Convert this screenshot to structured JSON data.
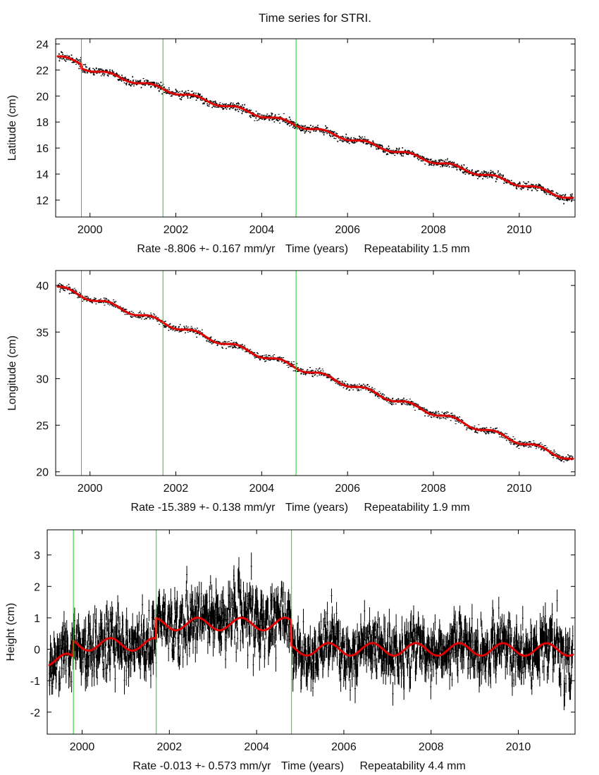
{
  "title": "Time series for STRI.",
  "colors": {
    "data": "#000000",
    "model": "#e00000",
    "breaks": "#22cc22",
    "axes": "#000000"
  },
  "chart_data": [
    {
      "type": "scatter",
      "id": "latitude",
      "ylabel": "Latitude (cm)",
      "xlabel": "Time (years)",
      "rate_text": "Rate -8.806 +- 0.167 mm/yr",
      "repeat_text": "Repeatability 1.5 mm",
      "xlim": [
        1999.2,
        2011.3
      ],
      "ylim": [
        10.7,
        24.4
      ],
      "xticks": [
        2000,
        2002,
        2004,
        2006,
        2008,
        2010
      ],
      "xtick_labels": [
        "2000",
        "2002",
        "2004",
        "2006",
        "2008",
        "2010"
      ],
      "yticks": [
        12,
        14,
        16,
        18,
        20,
        22,
        24
      ],
      "ytick_labels": [
        "12",
        "14",
        "16",
        "18",
        "20",
        "22",
        "24"
      ],
      "breaks": [
        1999.8,
        2001.7,
        2004.8
      ],
      "model": {
        "start_year": 1999.25,
        "start_value": 23.0,
        "rate_cm_per_yr": -0.8806,
        "annual_amp": 0.15,
        "offsets": [
          {
            "at": 1999.8,
            "delta": -0.3
          }
        ]
      },
      "noise_cm": 0.15
    },
    {
      "type": "scatter",
      "id": "longitude",
      "ylabel": "Longitude (cm)",
      "xlabel": "Time (years)",
      "rate_text": "Rate -15.389 +- 0.138 mm/yr",
      "repeat_text": "Repeatability 1.9 mm",
      "xlim": [
        1999.2,
        2011.3
      ],
      "ylim": [
        19.6,
        41.6
      ],
      "xticks": [
        2000,
        2002,
        2004,
        2006,
        2008,
        2010
      ],
      "xtick_labels": [
        "2000",
        "2002",
        "2004",
        "2006",
        "2008",
        "2010"
      ],
      "yticks": [
        20,
        25,
        30,
        35,
        40
      ],
      "ytick_labels": [
        "20",
        "25",
        "30",
        "35",
        "40"
      ],
      "breaks": [
        1999.8,
        2001.7,
        2004.8
      ],
      "model": {
        "start_year": 1999.25,
        "start_value": 39.8,
        "rate_cm_per_yr": -1.5389,
        "annual_amp": 0.25,
        "offsets": []
      },
      "noise_cm": 0.19
    },
    {
      "type": "scatter",
      "id": "height",
      "ylabel": "Height (cm)",
      "xlabel": "Time (years)",
      "rate_text": "Rate -0.013 +- 0.573 mm/yr",
      "repeat_text": "Repeatability 4.4 mm",
      "xlim": [
        1999.2,
        2011.3
      ],
      "ylim": [
        -2.7,
        3.8
      ],
      "xticks": [
        2000,
        2002,
        2004,
        2006,
        2008,
        2010
      ],
      "xtick_labels": [
        "2000",
        "2002",
        "2004",
        "2006",
        "2008",
        "2010"
      ],
      "yticks": [
        -2,
        -1,
        0,
        1,
        2,
        3
      ],
      "ytick_labels": [
        "-2",
        "-1",
        "0",
        "1",
        "2",
        "3"
      ],
      "breaks": [
        1999.8,
        2001.7,
        2004.8
      ],
      "model": {
        "segment_levels": [
          -0.35,
          0.15,
          0.8,
          0.0
        ],
        "segment_amps": [
          0.2,
          0.2,
          0.2,
          0.2
        ],
        "rate_cm_per_yr": -0.0013
      },
      "noise_cm": 0.44
    }
  ]
}
